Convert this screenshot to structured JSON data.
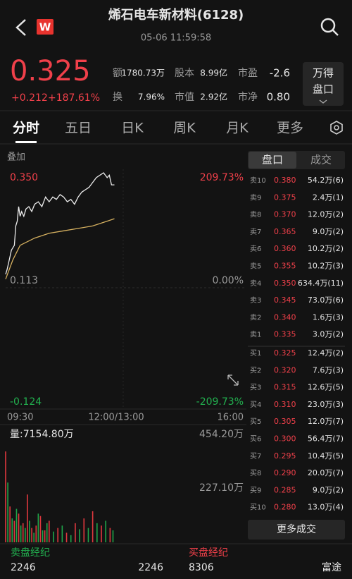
{
  "header": {
    "title": "烯石电车新材料(6128)",
    "time": "05-06 11:59:58",
    "badge": "W"
  },
  "quote": {
    "price": "0.325",
    "change": "+0.212",
    "change_pct": "+187.61%",
    "stats": [
      {
        "label": "额",
        "value": "1780.73万"
      },
      {
        "label": "股本",
        "value": "8.99亿"
      },
      {
        "label": "市盈",
        "value": "-2.6"
      },
      {
        "label": "换",
        "value": "7.96%"
      },
      {
        "label": "市值",
        "value": "2.92亿"
      },
      {
        "label": "市净",
        "value": "0.80"
      }
    ],
    "button": [
      "万得",
      "盘口"
    ]
  },
  "tabs": [
    "分时",
    "五日",
    "日K",
    "周K",
    "月K",
    "更多"
  ],
  "chart": {
    "overlay": "叠加",
    "price_labels": [
      "0.350",
      "0.113",
      "-0.124"
    ],
    "pct_labels": [
      "209.73%",
      "0.00%",
      "-209.73%"
    ],
    "time_labels": [
      "09:30",
      "12:00/13:00",
      "16:00"
    ],
    "volume_title": "量:7154.80万",
    "volume_labels": [
      "454.20万",
      "227.10万"
    ],
    "xlim": [
      0,
      330
    ],
    "ylim": [
      -0.124,
      0.35
    ],
    "price": {
      "color": "#ececec",
      "x": [
        0,
        2,
        5,
        8,
        12,
        14,
        16,
        18,
        20,
        22,
        25,
        28,
        32,
        36,
        40,
        45,
        50,
        55,
        60,
        65,
        70,
        75,
        80,
        85,
        90,
        95,
        100,
        105,
        110,
        115,
        120,
        125,
        130,
        135,
        140,
        143,
        146,
        150
      ],
      "values": [
        0.14,
        0.15,
        0.17,
        0.19,
        0.2,
        0.24,
        0.25,
        0.28,
        0.26,
        0.27,
        0.26,
        0.275,
        0.28,
        0.27,
        0.285,
        0.29,
        0.28,
        0.3,
        0.29,
        0.3,
        0.295,
        0.305,
        0.3,
        0.29,
        0.295,
        0.285,
        0.3,
        0.31,
        0.315,
        0.32,
        0.33,
        0.34,
        0.345,
        0.35,
        0.34,
        0.345,
        0.325,
        0.325
      ]
    },
    "average": {
      "color": "#d6b160",
      "x": [
        0,
        10,
        20,
        40,
        60,
        80,
        100,
        120,
        140,
        150
      ],
      "values": [
        0.13,
        0.17,
        0.2,
        0.215,
        0.225,
        0.23,
        0.235,
        0.24,
        0.25,
        0.255
      ]
    },
    "volume_ylim": [
      0,
      454.2
    ],
    "volume_up": {
      "color": "#e0383e",
      "x": [
        0,
        6,
        12,
        18,
        24,
        30,
        36,
        42,
        48,
        54,
        60,
        72,
        84,
        96,
        108,
        120,
        132,
        144
      ],
      "values": [
        380,
        150,
        90,
        120,
        80,
        200,
        60,
        70,
        110,
        50,
        90,
        60,
        40,
        80,
        100,
        130,
        70,
        60
      ]
    },
    "volume_down": {
      "color": "#1fa64a",
      "x": [
        3,
        9,
        15,
        21,
        27,
        33,
        39,
        45,
        51,
        57,
        66,
        78,
        90,
        102,
        114,
        126,
        138,
        148
      ],
      "values": [
        250,
        100,
        140,
        70,
        60,
        90,
        40,
        120,
        50,
        80,
        45,
        70,
        30,
        55,
        60,
        80,
        90,
        50
      ]
    }
  },
  "order_book": {
    "tabs": [
      "盘口",
      "成交"
    ],
    "asks": [
      {
        "level": "卖10",
        "price": "0.380",
        "volume": "54.2万(6)"
      },
      {
        "level": "卖9",
        "price": "0.375",
        "volume": "2.4万(1)"
      },
      {
        "level": "卖8",
        "price": "0.370",
        "volume": "12.0万(2)"
      },
      {
        "level": "卖7",
        "price": "0.365",
        "volume": "9.0万(2)"
      },
      {
        "level": "卖6",
        "price": "0.360",
        "volume": "10.2万(2)"
      },
      {
        "level": "卖5",
        "price": "0.355",
        "volume": "10.2万(3)"
      },
      {
        "level": "卖4",
        "price": "0.350",
        "volume": "634.4万(11)"
      },
      {
        "level": "卖3",
        "price": "0.345",
        "volume": "73.0万(6)"
      },
      {
        "level": "卖2",
        "price": "0.340",
        "volume": "1.6万(3)"
      },
      {
        "level": "卖1",
        "price": "0.335",
        "volume": "3.0万(2)"
      }
    ],
    "bids": [
      {
        "level": "买1",
        "price": "0.325",
        "volume": "12.4万(2)"
      },
      {
        "level": "买2",
        "price": "0.320",
        "volume": "7.6万(3)"
      },
      {
        "level": "买3",
        "price": "0.315",
        "volume": "12.6万(5)"
      },
      {
        "level": "买4",
        "price": "0.310",
        "volume": "23.0万(3)"
      },
      {
        "level": "买5",
        "price": "0.305",
        "volume": "12.0万(7)"
      },
      {
        "level": "买6",
        "price": "0.300",
        "volume": "56.4万(7)"
      },
      {
        "level": "买7",
        "price": "0.295",
        "volume": "10.4万(5)"
      },
      {
        "level": "买8",
        "price": "0.290",
        "volume": "20.0万(7)"
      },
      {
        "level": "买9",
        "price": "0.285",
        "volume": "9.0万(2)"
      },
      {
        "level": "买10",
        "price": "0.280",
        "volume": "13.0万(4)"
      }
    ],
    "more": "更多成交"
  },
  "brokers": {
    "sell": {
      "title": "卖盘经纪",
      "count": "2246",
      "value": "2246"
    },
    "buy": {
      "title": "买盘经纪",
      "count": "8306",
      "value": "富途"
    }
  }
}
